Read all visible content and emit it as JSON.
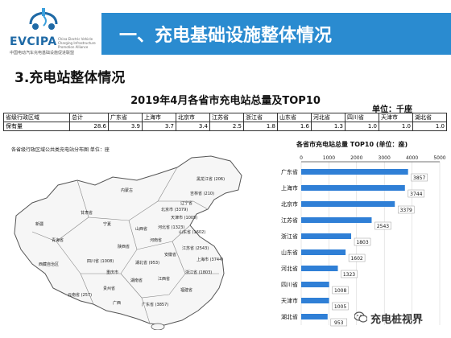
{
  "header": {
    "logo_text": "EVCIPA",
    "logo_subtitle": "中国电动汽车充电基础设施促进联盟",
    "logo_english": "China Electric Vehicle Charging Infrastructure Promotion Alliance",
    "title": "一、充电基础设施整体情况"
  },
  "section_title": "3.充电站整体情况",
  "summary_table": {
    "title": "2019年4月各省市充电站总量及TOP10",
    "unit": "单位：千座",
    "header_row": [
      "省级行政区域",
      "总计",
      "广东省",
      "上海市",
      "北京市",
      "江苏省",
      "浙江省",
      "山东省",
      "河北省",
      "四川省",
      "天津市",
      "湖北省"
    ],
    "values_row": [
      "保有量",
      "28.6",
      "3.9",
      "3.7",
      "3.4",
      "2.5",
      "1.8",
      "1.6",
      "1.3",
      "1.0",
      "1.0",
      "1.0"
    ]
  },
  "map": {
    "caption": "各省级行政区域公共类充电站分布图   单位：座",
    "labels": [
      {
        "text": "黑龙江省 (206)"
      },
      {
        "text": "吉林省 (210)"
      },
      {
        "text": "辽宁省"
      },
      {
        "text": "内蒙古"
      },
      {
        "text": "北京市 (3379)"
      },
      {
        "text": "天津市 (1005)"
      },
      {
        "text": "河北省 (1323)"
      },
      {
        "text": "山西省"
      },
      {
        "text": "宁夏"
      },
      {
        "text": "甘肃省"
      },
      {
        "text": "陕西省"
      },
      {
        "text": "河南省"
      },
      {
        "text": "山东省 (1602)"
      },
      {
        "text": "江苏省 (2543)"
      },
      {
        "text": "上海市 (3744)"
      },
      {
        "text": "浙江省 (1803)"
      },
      {
        "text": "安徽省"
      },
      {
        "text": "湖北省 (953)"
      },
      {
        "text": "四川省 (1008)"
      },
      {
        "text": "重庆市"
      },
      {
        "text": "湖南省"
      },
      {
        "text": "江西省"
      },
      {
        "text": "福建省"
      },
      {
        "text": "广东省 (3857)"
      },
      {
        "text": "广西"
      },
      {
        "text": "贵州省"
      },
      {
        "text": "云南省 (257)"
      },
      {
        "text": "西藏自治区"
      },
      {
        "text": "青海省"
      },
      {
        "text": "新疆"
      }
    ]
  },
  "chart_data": {
    "type": "bar",
    "orientation": "horizontal",
    "title": "各省市充电站总量 TOP10",
    "unit": "(单位：座)",
    "categories": [
      "广东省",
      "上海市",
      "北京市",
      "江苏省",
      "浙江省",
      "山东省",
      "河北省",
      "四川省",
      "天津市",
      "湖北省"
    ],
    "values": [
      3857,
      3744,
      3379,
      2543,
      1803,
      1602,
      1323,
      1008,
      1005,
      953
    ],
    "x_ticks": [
      "0",
      "1000",
      "2000",
      "3000",
      "4000",
      "5000"
    ],
    "xlim": [
      0,
      5000
    ],
    "bar_color": "#2f7fd6",
    "label_box_color": "#ffffff"
  },
  "watermark": {
    "text": "充电桩视界",
    "icon": "wechat-icon"
  },
  "colors": {
    "title_bar": "#2a8bd0",
    "logo_blue": "#1f6aa6",
    "map_fill": "#f6f6f6",
    "map_line": "#555555"
  }
}
